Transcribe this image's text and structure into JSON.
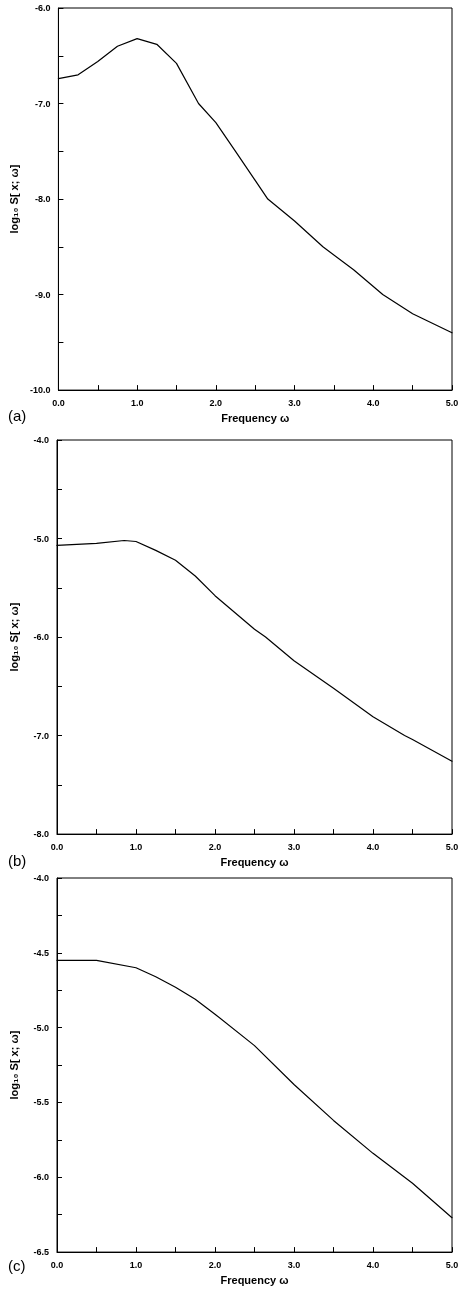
{
  "chart_data": [
    {
      "type": "line",
      "xlabel": "Frequency ω",
      "ylabel": "log₁₀ S[ x; ω]",
      "annotations": [
        "(a)"
      ],
      "xlim": [
        0,
        5
      ],
      "ylim": [
        -10,
        -6
      ],
      "xticks": [
        {
          "value": 0,
          "label": "0.0"
        },
        {
          "value": 0.5,
          "label": null
        },
        {
          "value": 1,
          "label": "1.0"
        },
        {
          "value": 1.5,
          "label": null
        },
        {
          "value": 2,
          "label": "2.0"
        },
        {
          "value": 2.5,
          "label": null
        },
        {
          "value": 3,
          "label": "3.0"
        },
        {
          "value": 3.5,
          "label": null
        },
        {
          "value": 4,
          "label": "4.0"
        },
        {
          "value": 4.5,
          "label": null
        },
        {
          "value": 5,
          "label": "5.0"
        }
      ],
      "yticks": [
        {
          "value": -10,
          "label": "-10.0"
        },
        {
          "value": -9.5,
          "label": null
        },
        {
          "value": -9,
          "label": "-9.0"
        },
        {
          "value": -8.5,
          "label": null
        },
        {
          "value": -8,
          "label": "-8.0"
        },
        {
          "value": -7.5,
          "label": null
        },
        {
          "value": -7,
          "label": "-7.0"
        },
        {
          "value": -6.5,
          "label": null
        },
        {
          "value": -6,
          "label": "-6.0"
        }
      ],
      "grid": false,
      "marker": "none",
      "line_style": "solid",
      "series": [
        {
          "color": "#000000",
          "x": [
            0,
            0.25,
            0.5,
            0.75,
            1.0,
            1.25,
            1.5,
            1.78,
            2.0,
            2.25,
            2.66,
            3.0,
            3.36,
            3.75,
            4.12,
            4.5,
            5.0
          ],
          "values": [
            -6.74,
            -6.7,
            -6.56,
            -6.4,
            -6.32,
            -6.38,
            -6.58,
            -7.0,
            -7.2,
            -7.5,
            -8.0,
            -8.23,
            -8.5,
            -8.74,
            -9.0,
            -9.2,
            -9.4
          ]
        }
      ]
    },
    {
      "type": "line",
      "xlabel": "Frequency ω",
      "ylabel": "log₁₀ S[ x; ω]",
      "annotations": [
        "(b)"
      ],
      "xlim": [
        0,
        5
      ],
      "ylim": [
        -8,
        -4
      ],
      "xticks": [
        {
          "value": 0,
          "label": "0.0"
        },
        {
          "value": 0.5,
          "label": null
        },
        {
          "value": 1,
          "label": "1.0"
        },
        {
          "value": 1.5,
          "label": null
        },
        {
          "value": 2,
          "label": "2.0"
        },
        {
          "value": 2.5,
          "label": null
        },
        {
          "value": 3,
          "label": "3.0"
        },
        {
          "value": 3.5,
          "label": null
        },
        {
          "value": 4,
          "label": "4.0"
        },
        {
          "value": 4.5,
          "label": null
        },
        {
          "value": 5,
          "label": "5.0"
        }
      ],
      "yticks": [
        {
          "value": -8,
          "label": "-8.0"
        },
        {
          "value": -7.5,
          "label": null
        },
        {
          "value": -7,
          "label": "-7.0"
        },
        {
          "value": -6.5,
          "label": null
        },
        {
          "value": -6,
          "label": "-6.0"
        },
        {
          "value": -5.5,
          "label": null
        },
        {
          "value": -5,
          "label": "-5.0"
        },
        {
          "value": -4.5,
          "label": null
        },
        {
          "value": -4,
          "label": "-4.0"
        }
      ],
      "grid": false,
      "marker": "none",
      "line_style": "solid",
      "series": [
        {
          "color": "#000000",
          "x": [
            0,
            0.5,
            0.85,
            1.0,
            1.25,
            1.5,
            1.75,
            2.0,
            2.5,
            2.64,
            3.0,
            3.5,
            4.0,
            4.4,
            4.5,
            5.0
          ],
          "values": [
            -5.07,
            -5.05,
            -5.02,
            -5.03,
            -5.12,
            -5.22,
            -5.38,
            -5.58,
            -5.92,
            -6.0,
            -6.24,
            -6.52,
            -6.81,
            -7.0,
            -7.04,
            -7.26
          ]
        }
      ]
    },
    {
      "type": "line",
      "xlabel": "Frequency ω",
      "ylabel": "log₁₀ S[ x; ω]",
      "annotations": [
        "(c)"
      ],
      "xlim": [
        0,
        5
      ],
      "ylim": [
        -6.5,
        -4
      ],
      "xticks": [
        {
          "value": 0,
          "label": "0.0"
        },
        {
          "value": 0.5,
          "label": null
        },
        {
          "value": 1,
          "label": "1.0"
        },
        {
          "value": 1.5,
          "label": null
        },
        {
          "value": 2,
          "label": "2.0"
        },
        {
          "value": 2.5,
          "label": null
        },
        {
          "value": 3,
          "label": "3.0"
        },
        {
          "value": 3.5,
          "label": null
        },
        {
          "value": 4,
          "label": "4.0"
        },
        {
          "value": 4.5,
          "label": null
        },
        {
          "value": 5,
          "label": "5.0"
        }
      ],
      "yticks": [
        {
          "value": -6.5,
          "label": "-6.5"
        },
        {
          "value": -6.25,
          "label": null
        },
        {
          "value": -6,
          "label": "-6.0"
        },
        {
          "value": -5.75,
          "label": null
        },
        {
          "value": -5.5,
          "label": "-5.5"
        },
        {
          "value": -5.25,
          "label": null
        },
        {
          "value": -5,
          "label": "-5.0"
        },
        {
          "value": -4.75,
          "label": null
        },
        {
          "value": -4.5,
          "label": "-4.5"
        },
        {
          "value": -4.25,
          "label": null
        },
        {
          "value": -4,
          "label": "-4.0"
        }
      ],
      "grid": false,
      "marker": "none",
      "line_style": "solid",
      "series": [
        {
          "color": "#000000",
          "x": [
            0,
            0.5,
            1.0,
            1.25,
            1.5,
            1.75,
            2.0,
            2.5,
            3.0,
            3.5,
            4.0,
            4.5,
            5.0
          ],
          "values": [
            -4.55,
            -4.55,
            -4.6,
            -4.66,
            -4.73,
            -4.81,
            -4.91,
            -5.12,
            -5.38,
            -5.62,
            -5.84,
            -6.04,
            -6.27
          ]
        }
      ]
    }
  ]
}
